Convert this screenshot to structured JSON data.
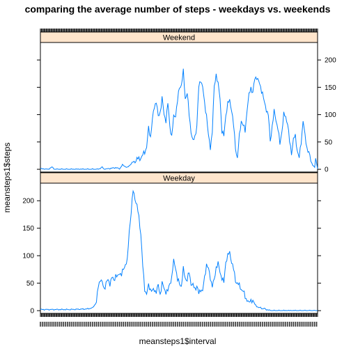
{
  "chart_data": {
    "type": "line",
    "title": "comparing the average number of steps - weekdays vs. weekends",
    "xlabel": "meansteps1$interval",
    "ylabel": "meansteps1$steps",
    "ylim": [
      -5,
      232
    ],
    "y_ticks": [
      0,
      50,
      100,
      150,
      200
    ],
    "x_n_intervals": 288,
    "x_tick_labels_note": "288 overlapping interval tick labels",
    "panels": [
      {
        "name": "Weekend",
        "y_axis_side": "right",
        "keyframes": [
          [
            0,
            1
          ],
          [
            8,
            0
          ],
          [
            12,
            4
          ],
          [
            15,
            0
          ],
          [
            60,
            0
          ],
          [
            64,
            4
          ],
          [
            66,
            0
          ],
          [
            78,
            3
          ],
          [
            82,
            1
          ],
          [
            85,
            8
          ],
          [
            90,
            3
          ],
          [
            95,
            12
          ],
          [
            100,
            18
          ],
          [
            105,
            22
          ],
          [
            110,
            40
          ],
          [
            112,
            75
          ],
          [
            114,
            60
          ],
          [
            116,
            90
          ],
          [
            118,
            115
          ],
          [
            120,
            125
          ],
          [
            122,
            95
          ],
          [
            124,
            105
          ],
          [
            126,
            130
          ],
          [
            128,
            100
          ],
          [
            130,
            90
          ],
          [
            132,
            120
          ],
          [
            134,
            80
          ],
          [
            136,
            60
          ],
          [
            138,
            95
          ],
          [
            140,
            100
          ],
          [
            142,
            125
          ],
          [
            144,
            150
          ],
          [
            146,
            155
          ],
          [
            148,
            178
          ],
          [
            150,
            130
          ],
          [
            152,
            140
          ],
          [
            154,
            100
          ],
          [
            156,
            70
          ],
          [
            158,
            50
          ],
          [
            160,
            60
          ],
          [
            162,
            80
          ],
          [
            164,
            150
          ],
          [
            166,
            165
          ],
          [
            168,
            150
          ],
          [
            170,
            120
          ],
          [
            172,
            100
          ],
          [
            174,
            60
          ],
          [
            176,
            40
          ],
          [
            178,
            70
          ],
          [
            180,
            150
          ],
          [
            182,
            175
          ],
          [
            184,
            155
          ],
          [
            186,
            130
          ],
          [
            188,
            70
          ],
          [
            190,
            60
          ],
          [
            192,
            100
          ],
          [
            194,
            120
          ],
          [
            196,
            125
          ],
          [
            198,
            110
          ],
          [
            200,
            80
          ],
          [
            202,
            40
          ],
          [
            204,
            20
          ],
          [
            206,
            60
          ],
          [
            208,
            90
          ],
          [
            210,
            80
          ],
          [
            212,
            70
          ],
          [
            214,
            110
          ],
          [
            216,
            135
          ],
          [
            218,
            150
          ],
          [
            220,
            140
          ],
          [
            222,
            165
          ],
          [
            224,
            170
          ],
          [
            226,
            160
          ],
          [
            228,
            150
          ],
          [
            230,
            140
          ],
          [
            232,
            120
          ],
          [
            234,
            110
          ],
          [
            236,
            100
          ],
          [
            238,
            50
          ],
          [
            240,
            80
          ],
          [
            242,
            105
          ],
          [
            244,
            90
          ],
          [
            246,
            75
          ],
          [
            248,
            45
          ],
          [
            250,
            70
          ],
          [
            252,
            100
          ],
          [
            254,
            95
          ],
          [
            256,
            85
          ],
          [
            258,
            50
          ],
          [
            260,
            30
          ],
          [
            262,
            55
          ],
          [
            264,
            60
          ],
          [
            266,
            35
          ],
          [
            268,
            20
          ],
          [
            270,
            50
          ],
          [
            272,
            90
          ],
          [
            274,
            60
          ],
          [
            276,
            40
          ],
          [
            278,
            30
          ],
          [
            280,
            15
          ],
          [
            282,
            8
          ],
          [
            284,
            3
          ],
          [
            285,
            20
          ],
          [
            287,
            2
          ]
        ]
      },
      {
        "name": "Weekday",
        "y_axis_side": "left",
        "keyframes": [
          [
            0,
            2
          ],
          [
            30,
            2
          ],
          [
            48,
            3
          ],
          [
            54,
            5
          ],
          [
            58,
            15
          ],
          [
            60,
            45
          ],
          [
            62,
            58
          ],
          [
            64,
            50
          ],
          [
            66,
            40
          ],
          [
            68,
            50
          ],
          [
            70,
            55
          ],
          [
            72,
            50
          ],
          [
            74,
            60
          ],
          [
            76,
            55
          ],
          [
            78,
            65
          ],
          [
            80,
            60
          ],
          [
            82,
            70
          ],
          [
            84,
            65
          ],
          [
            86,
            75
          ],
          [
            88,
            85
          ],
          [
            90,
            90
          ],
          [
            92,
            145
          ],
          [
            94,
            180
          ],
          [
            96,
            218
          ],
          [
            98,
            205
          ],
          [
            100,
            190
          ],
          [
            102,
            170
          ],
          [
            104,
            140
          ],
          [
            106,
            80
          ],
          [
            108,
            40
          ],
          [
            110,
            30
          ],
          [
            112,
            45
          ],
          [
            114,
            40
          ],
          [
            116,
            35
          ],
          [
            118,
            38
          ],
          [
            120,
            35
          ],
          [
            122,
            45
          ],
          [
            124,
            30
          ],
          [
            126,
            50
          ],
          [
            128,
            40
          ],
          [
            130,
            35
          ],
          [
            132,
            35
          ],
          [
            134,
            50
          ],
          [
            136,
            60
          ],
          [
            138,
            90
          ],
          [
            140,
            80
          ],
          [
            142,
            55
          ],
          [
            144,
            50
          ],
          [
            146,
            45
          ],
          [
            148,
            75
          ],
          [
            150,
            60
          ],
          [
            152,
            55
          ],
          [
            154,
            70
          ],
          [
            156,
            50
          ],
          [
            158,
            45
          ],
          [
            160,
            40
          ],
          [
            162,
            45
          ],
          [
            164,
            30
          ],
          [
            166,
            40
          ],
          [
            168,
            35
          ],
          [
            170,
            60
          ],
          [
            172,
            85
          ],
          [
            174,
            75
          ],
          [
            176,
            60
          ],
          [
            178,
            45
          ],
          [
            180,
            55
          ],
          [
            182,
            80
          ],
          [
            184,
            85
          ],
          [
            186,
            70
          ],
          [
            188,
            60
          ],
          [
            190,
            50
          ],
          [
            192,
            90
          ],
          [
            194,
            100
          ],
          [
            196,
            105
          ],
          [
            198,
            90
          ],
          [
            200,
            75
          ],
          [
            202,
            55
          ],
          [
            204,
            50
          ],
          [
            206,
            45
          ],
          [
            208,
            40
          ],
          [
            210,
            35
          ],
          [
            212,
            25
          ],
          [
            214,
            20
          ],
          [
            216,
            15
          ],
          [
            218,
            20
          ],
          [
            220,
            18
          ],
          [
            222,
            12
          ],
          [
            224,
            8
          ],
          [
            226,
            5
          ],
          [
            228,
            6
          ],
          [
            230,
            3
          ],
          [
            232,
            4
          ],
          [
            234,
            2
          ],
          [
            236,
            1
          ],
          [
            239,
            0
          ]
        ]
      }
    ]
  }
}
